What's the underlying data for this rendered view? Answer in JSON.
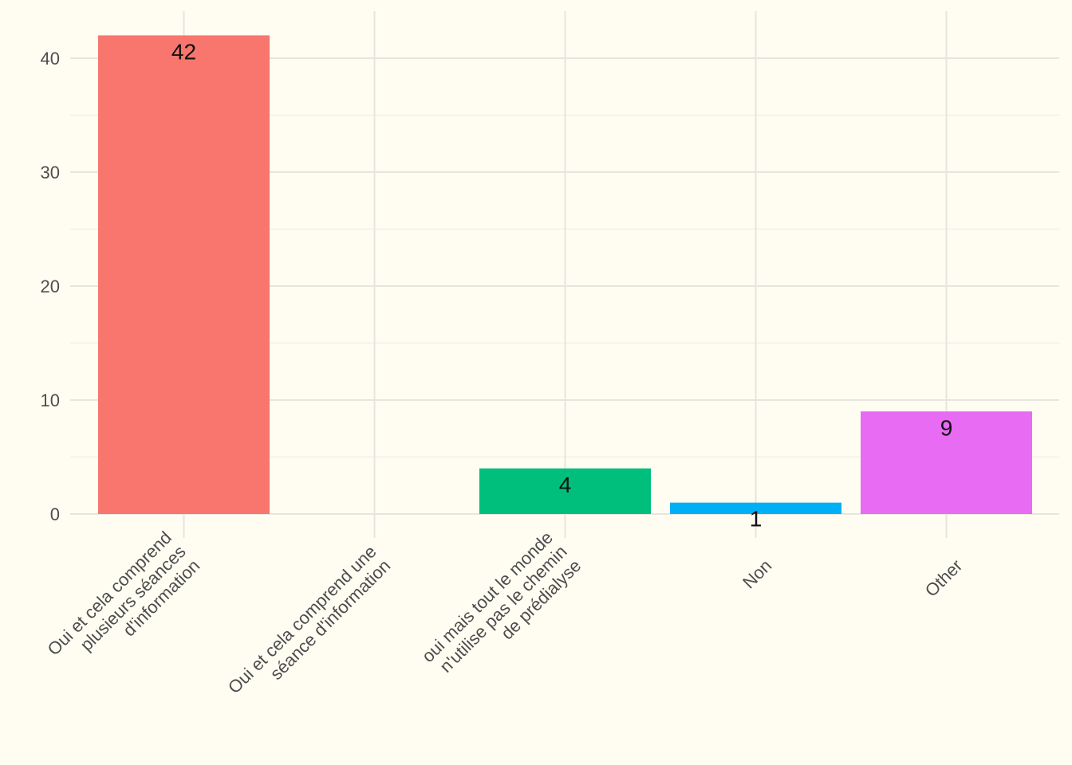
{
  "chart_data": {
    "type": "bar",
    "title": "",
    "xlabel": "",
    "ylabel": "",
    "categories": [
      [
        "Oui et cela comprend",
        "plusieurs séances",
        "d'information"
      ],
      [
        "Oui et cela comprend une",
        "séance d'information"
      ],
      [
        "oui mais tout le monde",
        "n'utilise pas le chemin",
        "de prédialyse"
      ],
      [
        "Non"
      ],
      [
        "Other"
      ]
    ],
    "values": [
      42,
      0,
      4,
      1,
      9
    ],
    "data_labels": [
      "42",
      "",
      "4",
      "1",
      "9"
    ],
    "colors": [
      "#f8766d",
      "#a3a500",
      "#00bf7d",
      "#00b0f6",
      "#e76bf3"
    ],
    "ylim": [
      0,
      42
    ],
    "yticks": [
      "0",
      "10",
      "20",
      "30",
      "40"
    ],
    "grid": true,
    "legend": "none",
    "background": "#fffdf2"
  }
}
